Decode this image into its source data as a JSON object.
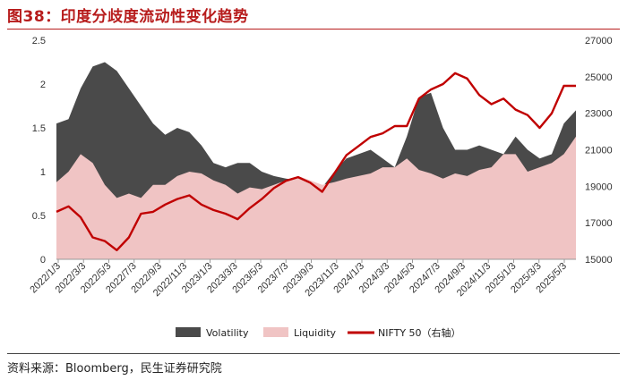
{
  "header": {
    "title": "图38：印度分歧度流动性变化趋势"
  },
  "footer": {
    "source": "资料来源：Bloomberg，民生证券研究院"
  },
  "chart_data": {
    "type": "area",
    "title": "图38：印度分歧度流动性变化趋势",
    "left_axis": {
      "min": 0,
      "max": 2.5,
      "ticks": [
        0,
        0.5,
        1,
        1.5,
        2,
        2.5
      ],
      "tick_labels": [
        "0",
        "0.5",
        "1",
        "1.5",
        "2",
        "2.5"
      ]
    },
    "right_axis": {
      "min": 15000,
      "max": 27000,
      "ticks": [
        15000,
        17000,
        19000,
        21000,
        23000,
        25000,
        27000
      ],
      "tick_labels": [
        "15000",
        "17000",
        "19000",
        "21000",
        "23000",
        "25000",
        "27000"
      ]
    },
    "x_tick_labels": [
      "2022/1/3",
      "2022/3/3",
      "2022/5/3",
      "2022/7/3",
      "2022/9/3",
      "2022/11/3",
      "2023/1/3",
      "2023/3/3",
      "2023/5/3",
      "2023/7/3",
      "2023/9/3",
      "2023/11/3",
      "2024/1/3",
      "2024/3/3",
      "2024/5/3",
      "2024/7/3",
      "2024/9/3",
      "2024/11/3",
      "2025/1/3",
      "2025/3/3",
      "2025/5/3"
    ],
    "legend_position": "bottom",
    "series": [
      {
        "name": "Volatility",
        "kind": "area",
        "axis": "left",
        "color": "#4a4a4a",
        "values": [
          1.55,
          1.6,
          1.95,
          2.2,
          2.25,
          2.15,
          1.95,
          1.75,
          1.55,
          1.42,
          1.5,
          1.45,
          1.3,
          1.1,
          1.05,
          1.1,
          1.1,
          1.0,
          0.95,
          0.92,
          0.9,
          0.82,
          0.82,
          1.0,
          1.15,
          1.2,
          1.25,
          1.15,
          1.05,
          1.4,
          1.85,
          1.9,
          1.5,
          1.25,
          1.25,
          1.3,
          1.25,
          1.2,
          1.4,
          1.25,
          1.15,
          1.2,
          1.55,
          1.7
        ]
      },
      {
        "name": "Liquidity",
        "kind": "area",
        "axis": "left",
        "color": "#f0c4c4",
        "values": [
          0.88,
          1.0,
          1.2,
          1.1,
          0.85,
          0.7,
          0.75,
          0.7,
          0.85,
          0.85,
          0.95,
          1.0,
          0.98,
          0.9,
          0.85,
          0.75,
          0.82,
          0.8,
          0.85,
          0.9,
          0.95,
          0.9,
          0.85,
          0.88,
          0.92,
          0.95,
          0.98,
          1.05,
          1.05,
          1.15,
          1.02,
          0.98,
          0.92,
          0.98,
          0.95,
          1.02,
          1.05,
          1.2,
          1.2,
          1.0,
          1.05,
          1.1,
          1.2,
          1.4
        ]
      },
      {
        "name": "NIFTY 50（右轴）",
        "kind": "line",
        "axis": "right",
        "color": "#c00000",
        "values": [
          17600,
          17900,
          17300,
          16200,
          16000,
          15500,
          16200,
          17500,
          17600,
          18000,
          18300,
          18500,
          18000,
          17700,
          17500,
          17200,
          17800,
          18300,
          18900,
          19300,
          19500,
          19200,
          18700,
          19700,
          20700,
          21200,
          21700,
          21900,
          22300,
          22300,
          23800,
          24300,
          24600,
          25200,
          24900,
          24000,
          23500,
          23800,
          23200,
          22900,
          22200,
          23000,
          24500,
          24500
        ]
      }
    ]
  }
}
